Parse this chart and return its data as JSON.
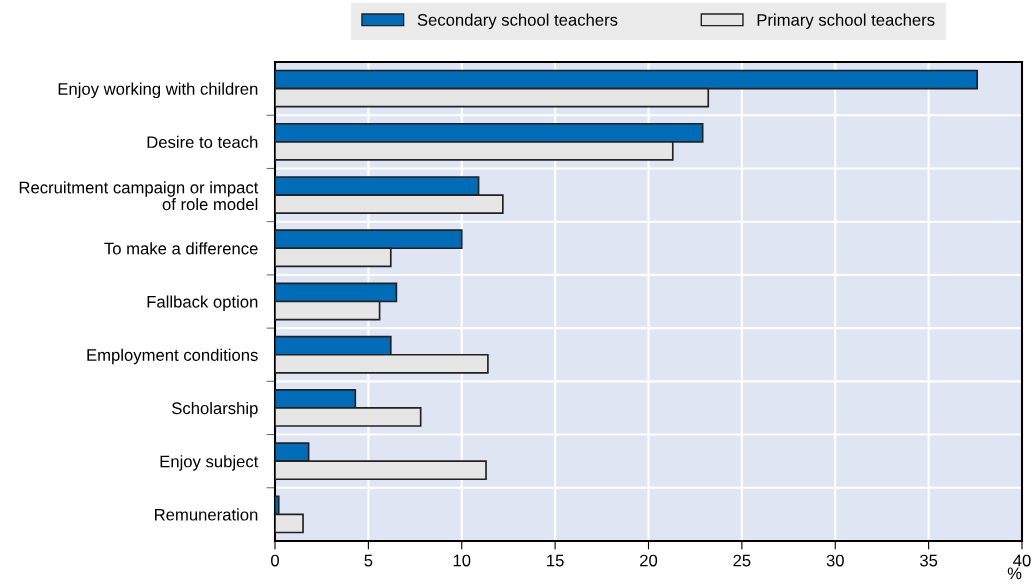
{
  "chart_data": {
    "type": "bar",
    "orientation": "horizontal",
    "xlabel": "%",
    "categories": [
      "Enjoy working with children",
      "Desire to teach",
      "Recruitment campaign or impact\nof role model",
      "To make a difference",
      "Fallback option",
      "Employment conditions",
      "Scholarship",
      "Enjoy subject",
      "Remuneration"
    ],
    "series": [
      {
        "name": "Secondary school teachers",
        "color": "#006bb6",
        "values": [
          37.6,
          22.9,
          10.9,
          10.0,
          6.5,
          6.2,
          4.3,
          1.8,
          0.2
        ]
      },
      {
        "name": "Primary school teachers",
        "color": "#e6e6e6",
        "values": [
          23.2,
          21.3,
          12.2,
          6.2,
          5.6,
          11.4,
          7.8,
          11.3,
          1.5
        ]
      }
    ],
    "xlim": [
      0,
      40
    ],
    "xticks": [
      0,
      5,
      10,
      15,
      20,
      25,
      30,
      35,
      40
    ],
    "grid": "x",
    "legend": "top"
  }
}
